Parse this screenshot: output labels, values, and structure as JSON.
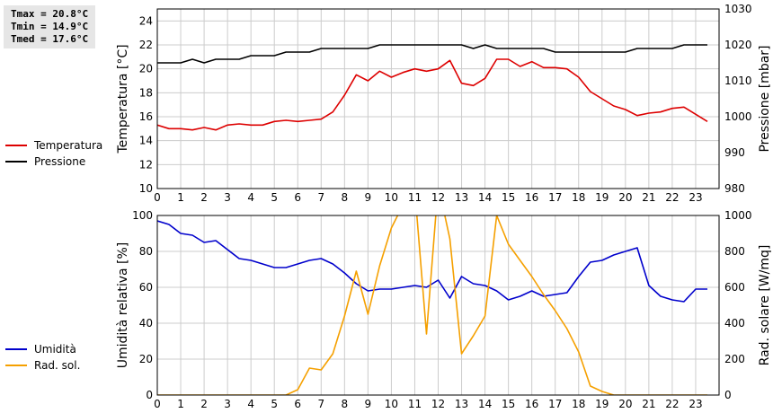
{
  "stats": {
    "tmax": "Tmax = 20.8°C",
    "tmin": "Tmin = 14.9°C",
    "tmed": "Tmed = 17.6°C"
  },
  "colors": {
    "temperature": "#dd0000",
    "pressure": "#000000",
    "humidity": "#0000cc",
    "solar": "#f5a000",
    "grid": "#cccccc"
  },
  "chart_data": [
    {
      "type": "line",
      "xlim": [
        0,
        24
      ],
      "xticks": [
        0,
        1,
        2,
        3,
        4,
        5,
        6,
        7,
        8,
        9,
        10,
        11,
        12,
        13,
        14,
        15,
        16,
        17,
        18,
        19,
        20,
        21,
        22,
        23
      ],
      "ylabel": "Temperatura [°C]",
      "ylim": [
        10,
        25
      ],
      "yticks": [
        10,
        12,
        14,
        16,
        18,
        20,
        22,
        24
      ],
      "y2label": "Pressione [mbar]",
      "y2lim": [
        980,
        1030
      ],
      "y2ticks": [
        980,
        990,
        1000,
        1010,
        1020,
        1030
      ],
      "grid": true,
      "legend_position": "left",
      "series": [
        {
          "name": "Temperatura",
          "axis": "left",
          "x": [
            0,
            0.5,
            1,
            1.5,
            2,
            2.5,
            3,
            3.5,
            4,
            4.5,
            5,
            5.5,
            6,
            6.5,
            7,
            7.5,
            8,
            8.5,
            9,
            9.5,
            10,
            10.5,
            11,
            11.5,
            12,
            12.5,
            13,
            13.5,
            14,
            14.5,
            15,
            15.5,
            16,
            16.5,
            17,
            17.5,
            18,
            18.5,
            19,
            19.5,
            20,
            20.5,
            21,
            21.5,
            22,
            22.5,
            23,
            23.5
          ],
          "y": [
            15.3,
            15.0,
            15.0,
            14.9,
            15.1,
            14.9,
            15.3,
            15.4,
            15.3,
            15.3,
            15.6,
            15.7,
            15.6,
            15.7,
            15.8,
            16.4,
            17.8,
            19.5,
            19.0,
            19.8,
            19.3,
            19.7,
            20.0,
            19.8,
            20.0,
            20.7,
            18.8,
            18.6,
            19.2,
            20.8,
            20.8,
            20.2,
            20.6,
            20.1,
            20.1,
            20.0,
            19.3,
            18.1,
            17.5,
            16.9,
            16.6,
            16.1,
            16.3,
            16.4,
            16.7,
            16.8,
            16.2,
            15.6
          ]
        },
        {
          "name": "Pressione",
          "axis": "right",
          "x": [
            0,
            0.5,
            1,
            1.5,
            2,
            2.5,
            3,
            3.5,
            4,
            4.5,
            5,
            5.5,
            6,
            6.5,
            7,
            7.5,
            8,
            8.5,
            9,
            9.5,
            10,
            10.5,
            11,
            11.5,
            12,
            12.5,
            13,
            13.5,
            14,
            14.5,
            15,
            15.5,
            16,
            16.5,
            17,
            17.5,
            18,
            18.5,
            19,
            19.5,
            20,
            20.5,
            21,
            21.5,
            22,
            22.5,
            23,
            23.5
          ],
          "y": [
            1015,
            1015,
            1015,
            1016,
            1015,
            1016,
            1016,
            1016,
            1017,
            1017,
            1017,
            1018,
            1018,
            1018,
            1019,
            1019,
            1019,
            1019,
            1019,
            1020,
            1020,
            1020,
            1020,
            1020,
            1020,
            1020,
            1020,
            1019,
            1020,
            1019,
            1019,
            1019,
            1019,
            1019,
            1018,
            1018,
            1018,
            1018,
            1018,
            1018,
            1018,
            1019,
            1019,
            1019,
            1019,
            1020,
            1020,
            1020
          ]
        }
      ]
    },
    {
      "type": "line",
      "xlim": [
        0,
        24
      ],
      "xticks": [
        0,
        1,
        2,
        3,
        4,
        5,
        6,
        7,
        8,
        9,
        10,
        11,
        12,
        13,
        14,
        15,
        16,
        17,
        18,
        19,
        20,
        21,
        22,
        23
      ],
      "ylabel": "Umidità relativa [%]",
      "ylim": [
        0,
        100
      ],
      "yticks": [
        0,
        20,
        40,
        60,
        80,
        100
      ],
      "y2label": "Rad. solare [W/mq]",
      "y2lim": [
        0,
        1000
      ],
      "y2ticks": [
        0,
        200,
        400,
        600,
        800,
        1000
      ],
      "grid": true,
      "legend_position": "left",
      "series": [
        {
          "name": "Umidità",
          "axis": "left",
          "x": [
            0,
            0.5,
            1,
            1.5,
            2,
            2.5,
            3,
            3.5,
            4,
            4.5,
            5,
            5.5,
            6,
            6.5,
            7,
            7.5,
            8,
            8.5,
            9,
            9.5,
            10,
            10.5,
            11,
            11.5,
            12,
            12.5,
            13,
            13.5,
            14,
            14.5,
            15,
            15.5,
            16,
            16.5,
            17,
            17.5,
            18,
            18.5,
            19,
            19.5,
            20,
            20.5,
            21,
            21.5,
            22,
            22.5,
            23,
            23.5
          ],
          "y": [
            97,
            95,
            90,
            89,
            85,
            86,
            81,
            76,
            75,
            73,
            71,
            71,
            73,
            75,
            76,
            73,
            68,
            62,
            58,
            59,
            59,
            60,
            61,
            60,
            64,
            54,
            66,
            62,
            61,
            58,
            53,
            55,
            58,
            55,
            56,
            57,
            66,
            74,
            75,
            78,
            80,
            82,
            61,
            55,
            53,
            52,
            59,
            59
          ]
        },
        {
          "name": "Rad. sol.",
          "axis": "right",
          "x": [
            0,
            0.5,
            1,
            1.5,
            2,
            2.5,
            3,
            3.5,
            4,
            4.5,
            5,
            5.5,
            6,
            6.5,
            7,
            7.5,
            8,
            8.5,
            9,
            9.5,
            10,
            10.5,
            11,
            11.5,
            12,
            12.5,
            13,
            13.5,
            14,
            14.5,
            15,
            15.5,
            16,
            16.5,
            17,
            17.5,
            18,
            18.5,
            19,
            19.5,
            20,
            20.5,
            21,
            21.5,
            22,
            22.5,
            23,
            23.5
          ],
          "y": [
            0,
            0,
            0,
            0,
            0,
            0,
            0,
            0,
            0,
            0,
            0,
            0,
            30,
            150,
            140,
            230,
            440,
            690,
            450,
            720,
            930,
            1060,
            1140,
            340,
            1170,
            870,
            230,
            330,
            440,
            1000,
            840,
            750,
            660,
            560,
            470,
            370,
            240,
            50,
            20,
            0,
            0,
            0,
            0,
            0,
            0,
            0,
            0,
            0
          ]
        }
      ]
    }
  ]
}
